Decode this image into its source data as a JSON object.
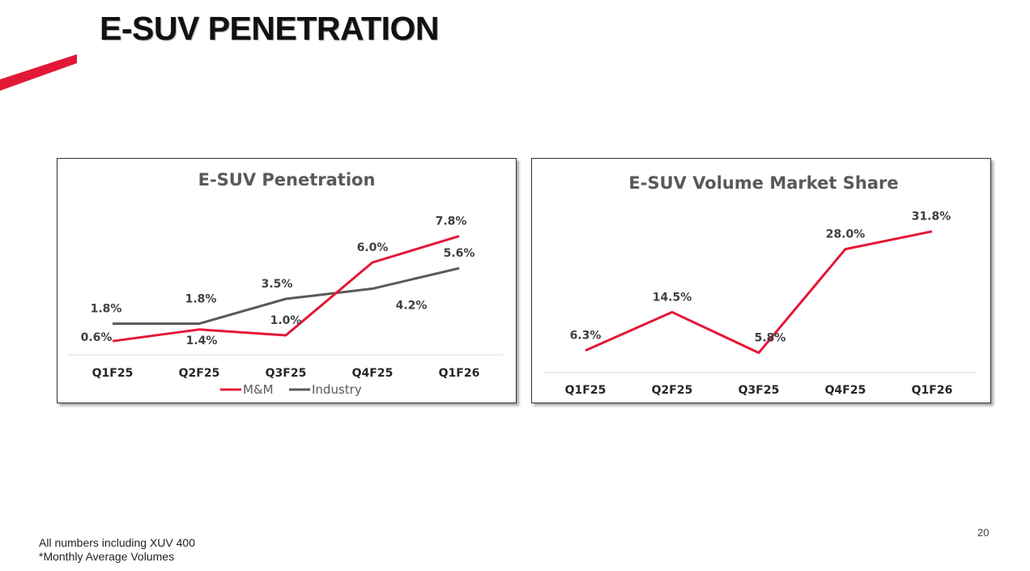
{
  "slide": {
    "title": "E-SUV PENETRATION",
    "page_number": "20",
    "footnotes": [
      "All numbers including XUV 400",
      "*Monthly Average Volumes"
    ]
  },
  "colors": {
    "accent": "#E31837",
    "industry": "#595959"
  },
  "chart_data": [
    {
      "type": "line",
      "title": "E-SUV Penetration",
      "categories": [
        "Q1F25",
        "Q2F25",
        "Q3F25",
        "Q4F25",
        "Q1F26"
      ],
      "series": [
        {
          "name": "M&M",
          "values": [
            0.6,
            1.4,
            1.0,
            6.0,
            7.8
          ],
          "labels": [
            "0.6%",
            "1.4%",
            "1.0%",
            "6.0%",
            "7.8%"
          ],
          "color": "#E31837"
        },
        {
          "name": "Industry",
          "values": [
            1.8,
            1.8,
            3.5,
            4.2,
            5.6
          ],
          "labels": [
            "1.8%",
            "1.8%",
            "3.5%",
            "4.2%",
            "5.6%"
          ],
          "color": "#595959"
        }
      ],
      "ylim": [
        0,
        9.5
      ],
      "legend": "bottom",
      "grid": false
    },
    {
      "type": "line",
      "title": "E-SUV Volume Market Share",
      "categories": [
        "Q1F25",
        "Q2F25",
        "Q3F25",
        "Q4F25",
        "Q1F26"
      ],
      "series": [
        {
          "name": "M&M",
          "values": [
            6.3,
            14.5,
            5.8,
            28.0,
            31.8
          ],
          "labels": [
            "6.3%",
            "14.5%",
            "5.8%",
            "28.0%",
            "31.8%"
          ],
          "color": "#E31837"
        }
      ],
      "ylim": [
        0,
        38
      ],
      "legend": "none",
      "grid": false
    }
  ]
}
